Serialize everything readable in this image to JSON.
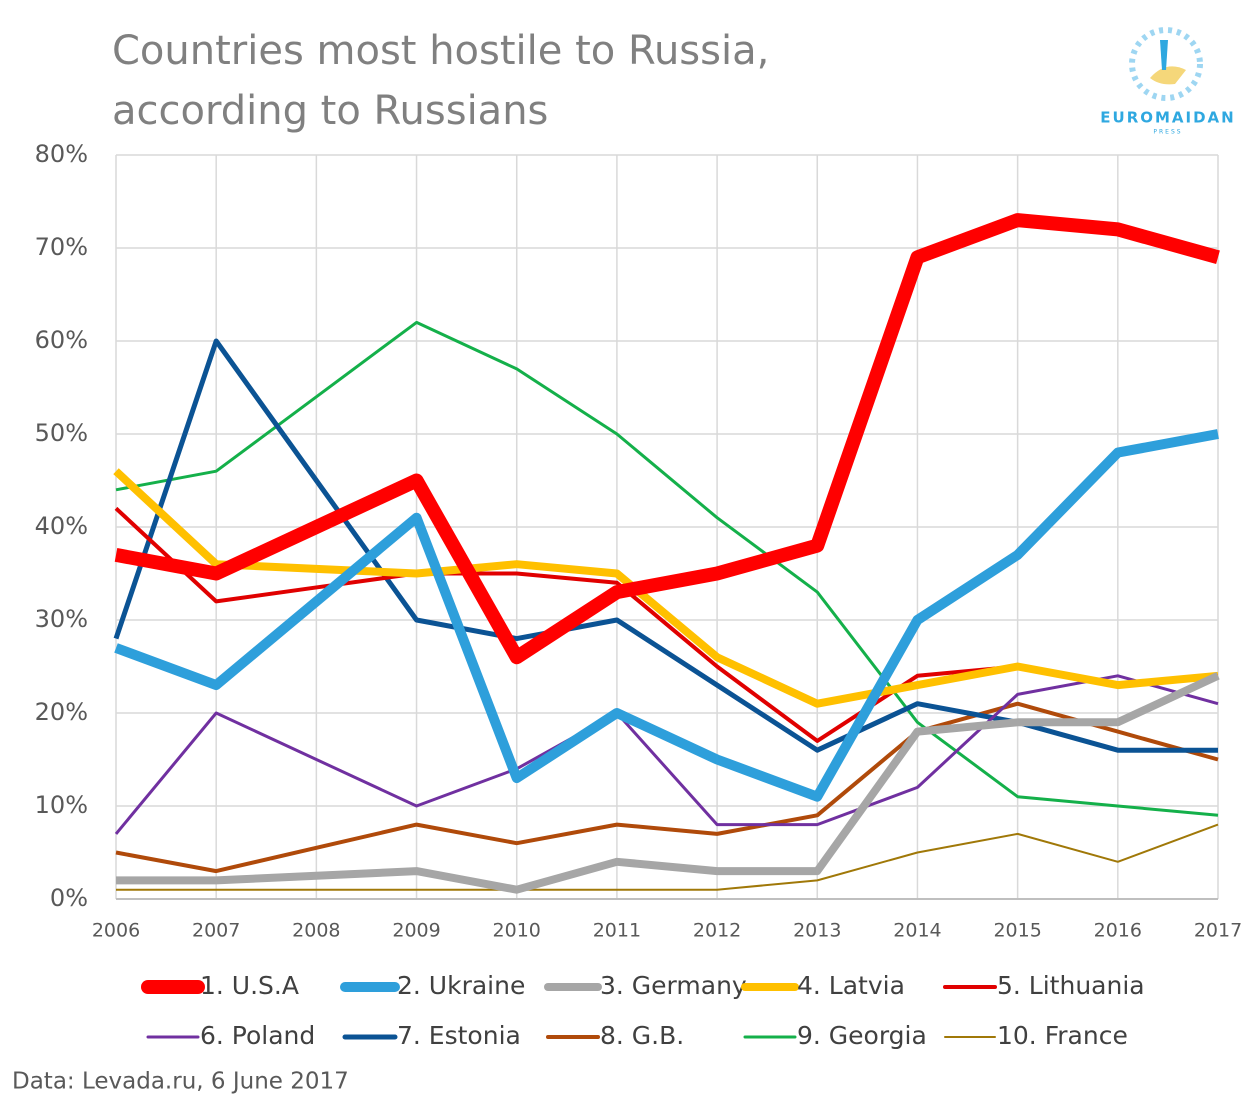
{
  "logo_text": "EUROMAIDAN",
  "logo_subtext": "PRESS",
  "chart_data": {
    "type": "line",
    "title": "Countries most hostile to Russia,",
    "title_line_2": "according to Russians",
    "source": "Data: Levada.ru, 6 June 2017",
    "x": [
      2006,
      2007,
      2008,
      2009,
      2010,
      2011,
      2012,
      2013,
      2014,
      2015,
      2016,
      2017
    ],
    "xlim": [
      2006,
      2017
    ],
    "xticks": [
      2006,
      2007,
      2008,
      2009,
      2010,
      2011,
      2012,
      2013,
      2014,
      2015,
      2016,
      2017
    ],
    "ylim": [
      0,
      80
    ],
    "yticks": [
      {
        "value": 0,
        "label": "0%"
      },
      {
        "value": 10,
        "label": "10%"
      },
      {
        "value": 20,
        "label": "20%"
      },
      {
        "value": 30,
        "label": "30%"
      },
      {
        "value": 40,
        "label": "40%"
      },
      {
        "value": 50,
        "label": "50%"
      },
      {
        "value": 60,
        "label": "60%"
      },
      {
        "value": 70,
        "label": "70%"
      },
      {
        "value": 80,
        "label": "80%"
      }
    ],
    "grid": true,
    "legend": "bottom",
    "series": [
      {
        "name": "1. U.S.A",
        "color": "#ff0000",
        "width": 14,
        "values": [
          37,
          35,
          40,
          45,
          26,
          33,
          35,
          38,
          69,
          73,
          72,
          69
        ]
      },
      {
        "name": "2. Ukraine",
        "color": "#2e9fdb",
        "width": 10,
        "values": [
          27,
          23,
          32,
          41,
          13,
          20,
          15,
          11,
          30,
          37,
          48,
          50
        ]
      },
      {
        "name": "3. Germany",
        "color": "#a6a6a6",
        "width": 8,
        "values": [
          2,
          2,
          2.5,
          3,
          1,
          4,
          3,
          3,
          18,
          19,
          19,
          24
        ]
      },
      {
        "name": "4. Latvia",
        "color": "#ffc000",
        "width": 8,
        "values": [
          46,
          36,
          35.5,
          35,
          36,
          35,
          26,
          21,
          23,
          25,
          23,
          24
        ]
      },
      {
        "name": "5. Lithuania",
        "color": "#e00000",
        "width": 4,
        "values": [
          42,
          32,
          33.5,
          35,
          35,
          34,
          25,
          17,
          24,
          25,
          23,
          24
        ]
      },
      {
        "name": "6. Poland",
        "color": "#7030a0",
        "width": 3,
        "values": [
          7,
          20,
          15,
          10,
          14,
          20,
          8,
          8,
          12,
          22,
          24,
          21
        ]
      },
      {
        "name": "7. Estonia",
        "color": "#0b5394",
        "width": 5,
        "values": [
          28,
          60,
          45,
          30,
          28,
          30,
          23,
          16,
          21,
          19,
          16,
          16
        ]
      },
      {
        "name": "8. G.B.",
        "color": "#b04a0a",
        "width": 4,
        "values": [
          5,
          3,
          5.5,
          8,
          6,
          8,
          7,
          9,
          18,
          21,
          18,
          15
        ]
      },
      {
        "name": "9. Georgia",
        "color": "#14b04a",
        "width": 3,
        "values": [
          44,
          46,
          54,
          62,
          57,
          50,
          41,
          33,
          19,
          11,
          10,
          9
        ]
      },
      {
        "name": "10. France",
        "color": "#a07808",
        "width": 2,
        "values": [
          1,
          1,
          1,
          1,
          1,
          1,
          1,
          2,
          5,
          7,
          4,
          8
        ]
      }
    ]
  }
}
